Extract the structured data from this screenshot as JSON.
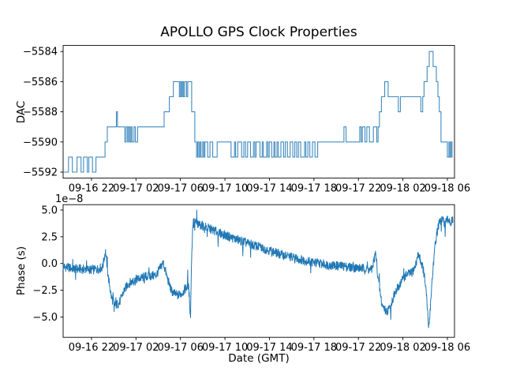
{
  "figure": {
    "title": "APOLLO GPS Clock Properties",
    "xlabel": "Date (GMT)",
    "background": "#ffffff",
    "line_color": "#1f77b4",
    "xlim_hours": [
      19.45,
      54.64
    ],
    "x_ticks": {
      "hours": [
        22,
        26,
        30,
        34,
        38,
        42,
        46,
        50,
        54
      ],
      "labels": [
        "09-16 22",
        "09-17 02",
        "09-17 06",
        "09-17 10",
        "09-17 14",
        "09-17 18",
        "09-17 22",
        "09-18 02",
        "09-18 06"
      ],
      "hours_reference": "09-16 00:00"
    }
  },
  "chart_data": [
    {
      "type": "line",
      "subplot": "top",
      "ylabel": "DAC",
      "line_style": "steps-post",
      "y_ticks": [
        -5584,
        -5586,
        -5588,
        -5590,
        -5592
      ],
      "y_tick_labels": [
        "−5584",
        "−5586",
        "−5588",
        "−5590",
        "−5592"
      ],
      "ylim": [
        -5583.6,
        -5592.4
      ],
      "t_end": 54.47,
      "step_points": [
        [
          19.45,
          -5592
        ],
        [
          19.93,
          -5591
        ],
        [
          20.28,
          -5592
        ],
        [
          20.7,
          -5591
        ],
        [
          21.06,
          -5592
        ],
        [
          21.29,
          -5591
        ],
        [
          21.62,
          -5592
        ],
        [
          21.76,
          -5591
        ],
        [
          22.09,
          -5592
        ],
        [
          22.4,
          -5591
        ],
        [
          23.22,
          -5590
        ],
        [
          23.42,
          -5589
        ],
        [
          24.24,
          -5588
        ],
        [
          24.34,
          -5589
        ],
        [
          25.0,
          -5590
        ],
        [
          25.12,
          -5589
        ],
        [
          25.25,
          -5590
        ],
        [
          25.34,
          -5589
        ],
        [
          25.45,
          -5590
        ],
        [
          25.55,
          -5589
        ],
        [
          25.65,
          -5590
        ],
        [
          25.82,
          -5589
        ],
        [
          25.95,
          -5590
        ],
        [
          26.15,
          -5589
        ],
        [
          28.53,
          -5588
        ],
        [
          29.0,
          -5587
        ],
        [
          29.36,
          -5586
        ],
        [
          29.9,
          -5587
        ],
        [
          30.0,
          -5586
        ],
        [
          30.1,
          -5587
        ],
        [
          30.18,
          -5586
        ],
        [
          30.28,
          -5587
        ],
        [
          30.38,
          -5586
        ],
        [
          30.55,
          -5587
        ],
        [
          30.65,
          -5586
        ],
        [
          31.01,
          -5588
        ],
        [
          31.29,
          -5590
        ],
        [
          31.45,
          -5591
        ],
        [
          31.55,
          -5590
        ],
        [
          31.65,
          -5591
        ],
        [
          31.75,
          -5590
        ],
        [
          31.85,
          -5591
        ],
        [
          32.0,
          -5590
        ],
        [
          32.1,
          -5591
        ],
        [
          32.2,
          -5590
        ],
        [
          32.45,
          -5591
        ],
        [
          32.65,
          -5590
        ],
        [
          32.9,
          -5591
        ],
        [
          33.3,
          -5590
        ],
        [
          34.55,
          -5591
        ],
        [
          34.86,
          -5590
        ],
        [
          34.96,
          -5591
        ],
        [
          35.15,
          -5590
        ],
        [
          35.5,
          -5591
        ],
        [
          35.7,
          -5590
        ],
        [
          35.85,
          -5591
        ],
        [
          36.04,
          -5590
        ],
        [
          36.3,
          -5591
        ],
        [
          36.56,
          -5590
        ],
        [
          36.68,
          -5591
        ],
        [
          36.8,
          -5590
        ],
        [
          37.15,
          -5591
        ],
        [
          37.35,
          -5590
        ],
        [
          37.45,
          -5591
        ],
        [
          37.74,
          -5590
        ],
        [
          37.86,
          -5591
        ],
        [
          37.98,
          -5590
        ],
        [
          38.2,
          -5591
        ],
        [
          38.4,
          -5590
        ],
        [
          38.5,
          -5591
        ],
        [
          38.68,
          -5590
        ],
        [
          38.79,
          -5591
        ],
        [
          39.03,
          -5590
        ],
        [
          39.27,
          -5591
        ],
        [
          39.43,
          -5590
        ],
        [
          39.62,
          -5591
        ],
        [
          39.86,
          -5590
        ],
        [
          40.1,
          -5591
        ],
        [
          40.28,
          -5590
        ],
        [
          40.45,
          -5591
        ],
        [
          40.61,
          -5590
        ],
        [
          40.81,
          -5591
        ],
        [
          41.16,
          -5590
        ],
        [
          41.27,
          -5591
        ],
        [
          41.46,
          -5590
        ],
        [
          41.63,
          -5591
        ],
        [
          41.87,
          -5590
        ],
        [
          42.1,
          -5591
        ],
        [
          42.34,
          -5590
        ],
        [
          44.7,
          -5589
        ],
        [
          44.89,
          -5590
        ],
        [
          46.12,
          -5589
        ],
        [
          46.25,
          -5590
        ],
        [
          46.35,
          -5589
        ],
        [
          46.59,
          -5590
        ],
        [
          46.76,
          -5589
        ],
        [
          46.99,
          -5590
        ],
        [
          47.35,
          -5589
        ],
        [
          47.65,
          -5590
        ],
        [
          47.77,
          -5589
        ],
        [
          47.89,
          -5588
        ],
        [
          48.07,
          -5587
        ],
        [
          48.36,
          -5586
        ],
        [
          48.67,
          -5587
        ],
        [
          49.59,
          -5588
        ],
        [
          49.77,
          -5587
        ],
        [
          51.61,
          -5588
        ],
        [
          51.78,
          -5587
        ],
        [
          51.9,
          -5586
        ],
        [
          52.18,
          -5585
        ],
        [
          52.37,
          -5584
        ],
        [
          52.72,
          -5585
        ],
        [
          53.01,
          -5586
        ],
        [
          53.15,
          -5587
        ],
        [
          53.27,
          -5588
        ],
        [
          53.43,
          -5590
        ],
        [
          54.0,
          -5591
        ],
        [
          54.14,
          -5590
        ],
        [
          54.23,
          -5591
        ],
        [
          54.33,
          -5590
        ],
        [
          54.42,
          -5591
        ]
      ]
    },
    {
      "type": "line",
      "subplot": "bottom",
      "ylabel": "Phase (s)",
      "offset_label": "1e−8",
      "y_ticks": [
        5.0,
        2.5,
        0.0,
        -2.5,
        -5.0
      ],
      "y_tick_labels": [
        "5.0",
        "2.5",
        "0.0",
        "−2.5",
        "−5.0"
      ],
      "ylim": [
        5.5,
        -6.9
      ],
      "t_range": [
        19.45,
        54.5
      ],
      "n_points": 1500,
      "noise_amplitude": 0.45,
      "anchors": [
        [
          19.45,
          -0.3
        ],
        [
          20.5,
          -0.5
        ],
        [
          21.5,
          -0.55
        ],
        [
          22.3,
          -0.6
        ],
        [
          23.0,
          -0.35
        ],
        [
          23.25,
          1.2
        ],
        [
          23.5,
          -1.2
        ],
        [
          23.8,
          -3.2
        ],
        [
          24.1,
          -3.9
        ],
        [
          24.5,
          -3.7
        ],
        [
          24.9,
          -2.6
        ],
        [
          25.3,
          -1.9
        ],
        [
          26.0,
          -1.5
        ],
        [
          27.0,
          -1.2
        ],
        [
          27.8,
          -1.1
        ],
        [
          28.2,
          -0.4
        ],
        [
          28.45,
          0.1
        ],
        [
          28.8,
          -1.3
        ],
        [
          29.2,
          -2.6
        ],
        [
          29.7,
          -3.0
        ],
        [
          30.1,
          -2.8
        ],
        [
          30.5,
          -2.3
        ],
        [
          30.7,
          -2.0
        ],
        [
          30.82,
          -3.4
        ],
        [
          30.9,
          -5.3
        ],
        [
          31.0,
          0.5
        ],
        [
          31.12,
          3.9
        ],
        [
          31.6,
          3.7
        ],
        [
          32.5,
          3.3
        ],
        [
          33.5,
          2.85
        ],
        [
          34.5,
          2.45
        ],
        [
          36.0,
          1.9
        ],
        [
          37.5,
          1.4
        ],
        [
          39.0,
          0.85
        ],
        [
          40.5,
          0.45
        ],
        [
          42.0,
          0.1
        ],
        [
          43.5,
          -0.15
        ],
        [
          45.0,
          -0.3
        ],
        [
          46.3,
          -0.45
        ],
        [
          47.2,
          -0.6
        ],
        [
          47.55,
          1.0
        ],
        [
          47.75,
          -1.2
        ],
        [
          48.1,
          -3.8
        ],
        [
          48.5,
          -4.5
        ],
        [
          48.8,
          -4.2
        ],
        [
          49.2,
          -3.0
        ],
        [
          49.6,
          -2.2
        ],
        [
          50.0,
          -1.4
        ],
        [
          50.4,
          -1.0
        ],
        [
          50.8,
          -0.9
        ],
        [
          51.1,
          -0.3
        ],
        [
          51.4,
          0.9
        ],
        [
          51.8,
          -0.4
        ],
        [
          52.0,
          -1.7
        ],
        [
          52.15,
          -3.5
        ],
        [
          52.33,
          -6.15
        ],
        [
          52.5,
          -3.5
        ],
        [
          52.7,
          -0.5
        ],
        [
          52.95,
          2.2
        ],
        [
          53.2,
          3.6
        ],
        [
          53.5,
          4.1
        ],
        [
          53.8,
          3.7
        ],
        [
          54.1,
          4.2
        ],
        [
          54.3,
          3.8
        ],
        [
          54.5,
          4.05
        ]
      ]
    }
  ]
}
